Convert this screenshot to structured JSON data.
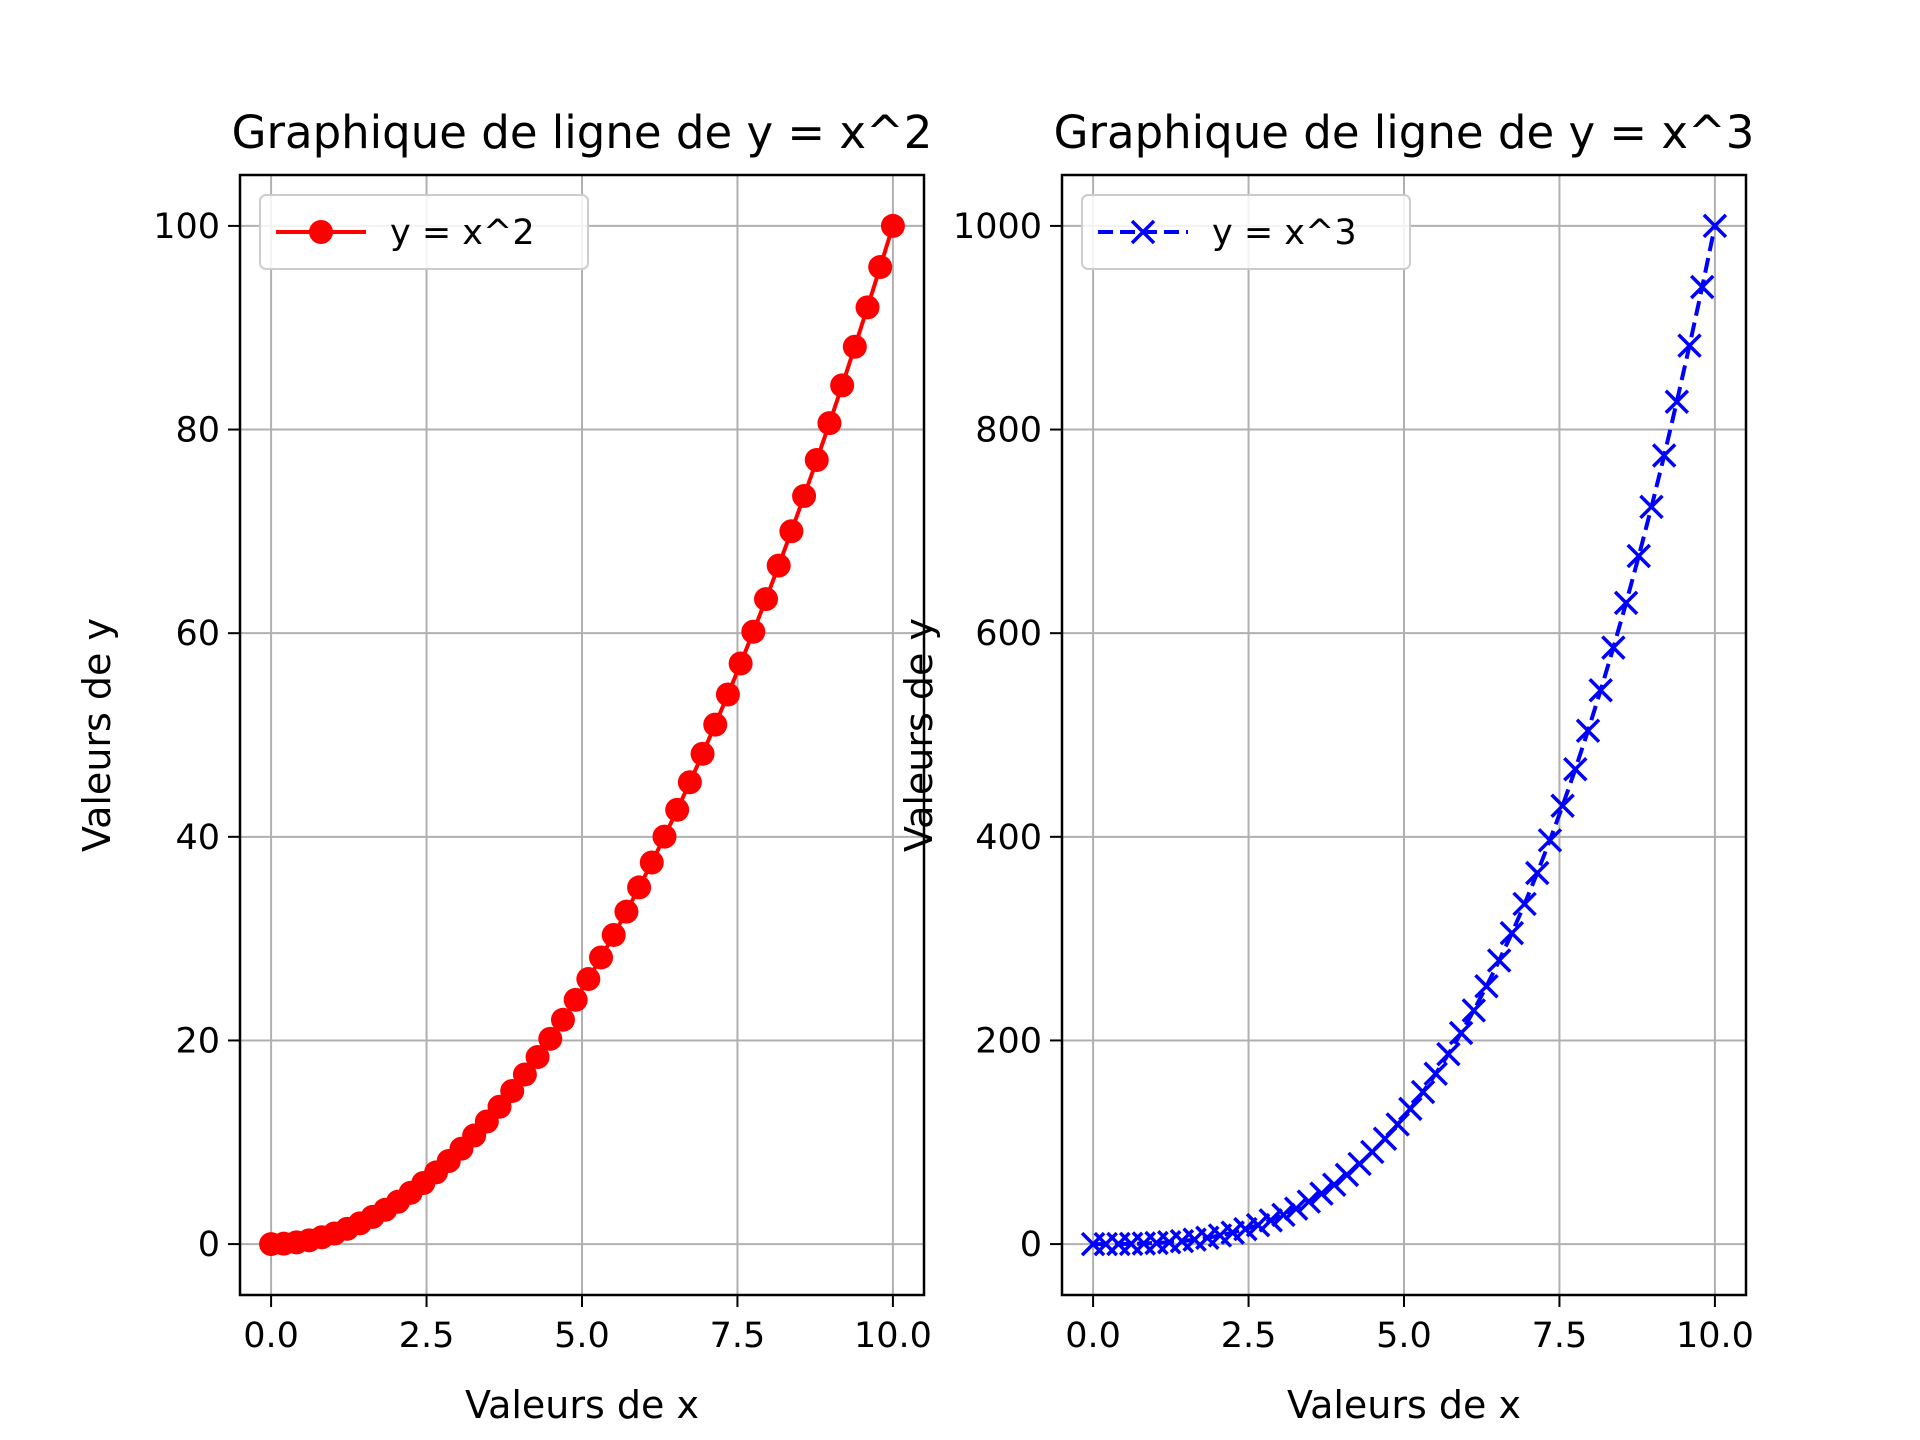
{
  "chart_data": [
    {
      "type": "line",
      "title": "Graphique de ligne de y = x^2",
      "xlabel": "Valeurs de x",
      "ylabel": "Valeurs de y",
      "xlim": [
        -0.5,
        10.5
      ],
      "ylim": [
        -5,
        105
      ],
      "xticks": [
        0,
        2.5,
        5,
        7.5,
        10
      ],
      "xtick_labels": [
        "0.0",
        "2.5",
        "5.0",
        "7.5",
        "10.0"
      ],
      "yticks": [
        0,
        20,
        40,
        60,
        80,
        100
      ],
      "ytick_labels": [
        "0",
        "20",
        "40",
        "60",
        "80",
        "100"
      ],
      "grid": true,
      "legend_position": "top-left",
      "series": [
        {
          "name": "y = x^2",
          "color": "#ff0000",
          "linestyle": "solid",
          "marker": "circle",
          "x": [
            0,
            0.2041,
            0.4082,
            0.6122,
            0.8163,
            1.0204,
            1.2245,
            1.4286,
            1.6327,
            1.8367,
            2.0408,
            2.2449,
            2.449,
            2.6531,
            2.8571,
            3.0612,
            3.2653,
            3.4694,
            3.6735,
            3.8776,
            4.0816,
            4.2857,
            4.4898,
            4.6939,
            4.898,
            5.102,
            5.3061,
            5.5102,
            5.7143,
            5.9184,
            6.1224,
            6.3265,
            6.5306,
            6.7347,
            6.9388,
            7.1429,
            7.3469,
            7.551,
            7.7551,
            7.9592,
            8.1633,
            8.3673,
            8.5714,
            8.7755,
            8.9796,
            9.1837,
            9.3878,
            9.5918,
            9.7959,
            10
          ],
          "y": [
            0,
            0.04,
            0.17,
            0.37,
            0.67,
            1.04,
            1.5,
            2.04,
            2.67,
            3.37,
            4.16,
            5.04,
            6.0,
            7.04,
            8.16,
            9.37,
            10.66,
            12.04,
            13.49,
            15.04,
            16.66,
            18.37,
            20.16,
            22.03,
            23.99,
            26.03,
            28.15,
            30.36,
            32.65,
            35.03,
            37.48,
            40.02,
            42.65,
            45.36,
            48.15,
            51.02,
            53.98,
            57.02,
            60.14,
            63.35,
            66.64,
            70.01,
            73.47,
            77.01,
            80.63,
            84.34,
            88.13,
            92.0,
            95.96,
            100
          ]
        }
      ]
    },
    {
      "type": "line",
      "title": "Graphique de ligne de y = x^3",
      "xlabel": "Valeurs de x",
      "ylabel": "Valeurs de y",
      "xlim": [
        -0.5,
        10.5
      ],
      "ylim": [
        -50,
        1050
      ],
      "xticks": [
        0,
        2.5,
        5,
        7.5,
        10
      ],
      "xtick_labels": [
        "0.0",
        "2.5",
        "5.0",
        "7.5",
        "10.0"
      ],
      "yticks": [
        0,
        200,
        400,
        600,
        800,
        1000
      ],
      "ytick_labels": [
        "0",
        "200",
        "400",
        "600",
        "800",
        "1000"
      ],
      "grid": true,
      "legend_position": "top-left",
      "series": [
        {
          "name": "y = x^3",
          "color": "#0000ff",
          "linestyle": "dashed",
          "marker": "x",
          "x": [
            0,
            0.2041,
            0.4082,
            0.6122,
            0.8163,
            1.0204,
            1.2245,
            1.4286,
            1.6327,
            1.8367,
            2.0408,
            2.2449,
            2.449,
            2.6531,
            2.8571,
            3.0612,
            3.2653,
            3.4694,
            3.6735,
            3.8776,
            4.0816,
            4.2857,
            4.4898,
            4.6939,
            4.898,
            5.102,
            5.3061,
            5.5102,
            5.7143,
            5.9184,
            6.1224,
            6.3265,
            6.5306,
            6.7347,
            6.9388,
            7.1429,
            7.3469,
            7.551,
            7.7551,
            7.9592,
            8.1633,
            8.3673,
            8.5714,
            8.7755,
            8.9796,
            9.1837,
            9.3878,
            9.5918,
            9.7959,
            10
          ],
          "y": [
            0,
            0.01,
            0.07,
            0.23,
            0.54,
            1.06,
            1.84,
            2.92,
            4.35,
            6.2,
            8.5,
            11.31,
            14.69,
            18.67,
            23.32,
            28.69,
            34.82,
            41.76,
            49.57,
            58.3,
            68.0,
            78.72,
            90.51,
            103.42,
            117.51,
            132.82,
            149.39,
            167.3,
            186.59,
            207.3,
            229.49,
            253.22,
            278.52,
            305.46,
            334.08,
            364.43,
            396.56,
            430.53,
            466.4,
            504.2,
            543.99,
            585.83,
            629.74,
            675.8,
            724.05,
            774.54,
            827.32,
            882.45,
            939.98,
            1000
          ]
        }
      ]
    }
  ]
}
